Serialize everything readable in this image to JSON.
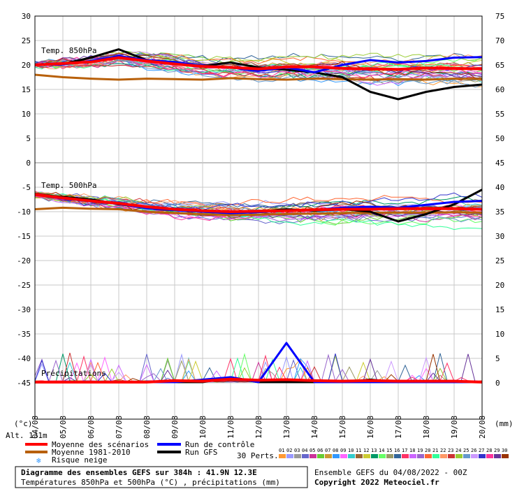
{
  "chart_data": {
    "type": "line",
    "x_tick_labels": [
      "04/08",
      "05/08",
      "06/08",
      "07/08",
      "08/08",
      "09/08",
      "10/08",
      "11/08",
      "12/08",
      "13/08",
      "14/08",
      "15/08",
      "16/08",
      "17/08",
      "18/08",
      "19/08",
      "20/08"
    ],
    "left_axis_ticks": [
      "30",
      "25",
      "20",
      "15",
      "10",
      "5",
      "0",
      "-5",
      "-10",
      "-15",
      "-20",
      "-25",
      "-30",
      "-35",
      "-40",
      "-45"
    ],
    "right_axis_ticks_upper": [
      "75",
      "70",
      "65",
      "60",
      "55",
      "50",
      "45"
    ],
    "right_axis_ticks_lower": [
      "40",
      "35",
      "30",
      "25",
      "20",
      "15",
      "10",
      "5",
      "0"
    ],
    "left_unit": "(°c)",
    "right_unit": "(mm)",
    "altitude_label": "Alt. 131m",
    "panel_labels": {
      "t850": "Temp. 850hPa",
      "t500": "Temp. 500hPa",
      "precip": "Précipitations"
    },
    "x_days": [
      0,
      1,
      2,
      3,
      4,
      5,
      6,
      7,
      8,
      9,
      10,
      11,
      12,
      13,
      14,
      15,
      16
    ],
    "series": [
      {
        "name": "Moyenne des scénarios",
        "color": "#ff0000",
        "panel": "t850",
        "values": [
          20,
          20.3,
          20.6,
          21.5,
          20.8,
          20.2,
          19.7,
          19.5,
          19.2,
          19.6,
          19.6,
          19.3,
          19.2,
          19.1,
          19.4,
          19.3,
          19.2
        ]
      },
      {
        "name": "Moyenne 1981-2010",
        "color": "#b8600a",
        "panel": "t850",
        "values": [
          18,
          17.5,
          17.2,
          17.0,
          17.2,
          17.1,
          17.0,
          17.3,
          17.1,
          17.0,
          17.2,
          17.1,
          17.0,
          17.1,
          17.0,
          17.2,
          17.1
        ]
      },
      {
        "name": "Run GFS",
        "color": "#000000",
        "panel": "t850",
        "values": [
          20,
          20.2,
          21.5,
          23.2,
          21,
          20.5,
          19.8,
          20.5,
          19.5,
          19.0,
          18.5,
          17.5,
          14.5,
          13.0,
          14.5,
          15.5,
          16.0
        ]
      },
      {
        "name": "Run de contrôle",
        "color": "#0000ff",
        "panel": "t850",
        "values": [
          20,
          20.1,
          20.8,
          21.8,
          21,
          20.6,
          19.8,
          19.5,
          18.8,
          19.5,
          18.5,
          20,
          21,
          20.5,
          20.8,
          21.5,
          21.6
        ]
      },
      {
        "name": "Moyenne des scénarios",
        "color": "#ff0000",
        "panel": "t500",
        "values": [
          -6.5,
          -7.2,
          -7.8,
          -8.3,
          -9,
          -9.5,
          -9.8,
          -10,
          -9.9,
          -9.8,
          -9.6,
          -9.5,
          -9.5,
          -9.4,
          -9.4,
          -9.4,
          -9.5
        ]
      },
      {
        "name": "Moyenne 1981-2010",
        "color": "#b8600a",
        "panel": "t500",
        "values": [
          -9.5,
          -9.2,
          -9.4,
          -9.5,
          -10,
          -10.3,
          -10.5,
          -10.7,
          -10.6,
          -10.5,
          -10.4,
          -10.3,
          -10.2,
          -10.2,
          -10.2,
          -10.1,
          -10.2
        ]
      },
      {
        "name": "Run GFS",
        "color": "#000000",
        "panel": "t500",
        "values": [
          -6.5,
          -7.0,
          -7.5,
          -8.5,
          -9,
          -9.5,
          -9.8,
          -10.2,
          -10,
          -9.5,
          -9.8,
          -9.5,
          -10,
          -12,
          -10.5,
          -8.5,
          -5.5
        ]
      },
      {
        "name": "Run de contrôle",
        "color": "#0000ff",
        "panel": "t500",
        "values": [
          -6.5,
          -7.3,
          -7.9,
          -8.4,
          -9.3,
          -9.7,
          -10,
          -10.3,
          -10.1,
          -9.8,
          -9.6,
          -9.2,
          -9,
          -9.2,
          -8.6,
          -8,
          -7.8
        ]
      },
      {
        "name": "Moyenne des scénarios",
        "color": "#ff0000",
        "panel": "precip",
        "values": [
          0,
          0,
          0,
          0,
          0,
          0.3,
          0.2,
          0.6,
          0.4,
          0.5,
          0.3,
          0.2,
          0.3,
          0.2,
          0.2,
          0.2,
          0
        ]
      },
      {
        "name": "Run GFS",
        "color": "#000000",
        "panel": "precip",
        "values": [
          0,
          0,
          0,
          0,
          0,
          0,
          0,
          1,
          0,
          0,
          0,
          0,
          0.5,
          0,
          0,
          0,
          0
        ]
      },
      {
        "name": "Run de contrôle",
        "color": "#0000ff",
        "panel": "precip",
        "values": [
          0,
          0,
          0,
          0,
          0,
          0,
          0.5,
          1,
          0,
          8,
          0,
          0,
          0,
          0,
          0,
          0,
          0
        ]
      }
    ],
    "perturbation_colors": [
      "#ff9933",
      "#9999ff",
      "#999999",
      "#6666cc",
      "#cc3399",
      "#66cc33",
      "#cc9933",
      "#3399ff",
      "#ff66ff",
      "#33cccc",
      "#996633",
      "#cccc33",
      "#009966",
      "#66ff66",
      "#999966",
      "#336699",
      "#ff3366",
      "#cc66ff",
      "#9966cc",
      "#ff6633",
      "#33ff99",
      "#ff9966",
      "#cc3333",
      "#99cc33",
      "#6699cc",
      "#cc99ff",
      "#3333cc",
      "#ff3399",
      "#663399",
      "#993300"
    ]
  },
  "legend": {
    "mean": "Moyenne des scénarios",
    "climate": "Moyenne 1981-2010",
    "snow": "Risque neige",
    "control": "Run de contrôle",
    "gfs": "Run GFS",
    "perts": "30 Perts.",
    "pert_numbers": [
      "01",
      "02",
      "03",
      "04",
      "05",
      "06",
      "07",
      "08",
      "09",
      "10",
      "11",
      "12",
      "13",
      "14",
      "15",
      "16",
      "17",
      "18",
      "19",
      "20",
      "21",
      "22",
      "23",
      "24",
      "25",
      "26",
      "27",
      "28",
      "29",
      "30"
    ]
  },
  "caption": {
    "title": "Diagramme des ensembles GEFS sur 384h : 41.9N 12.3E",
    "subtitle": "Températures 850hPa et 500hPa (°C) , précipitations (mm)",
    "ensemble": "Ensemble GEFS du 04/08/2022 - 00Z",
    "copyright": "Copyright 2022 Meteociel.fr"
  }
}
